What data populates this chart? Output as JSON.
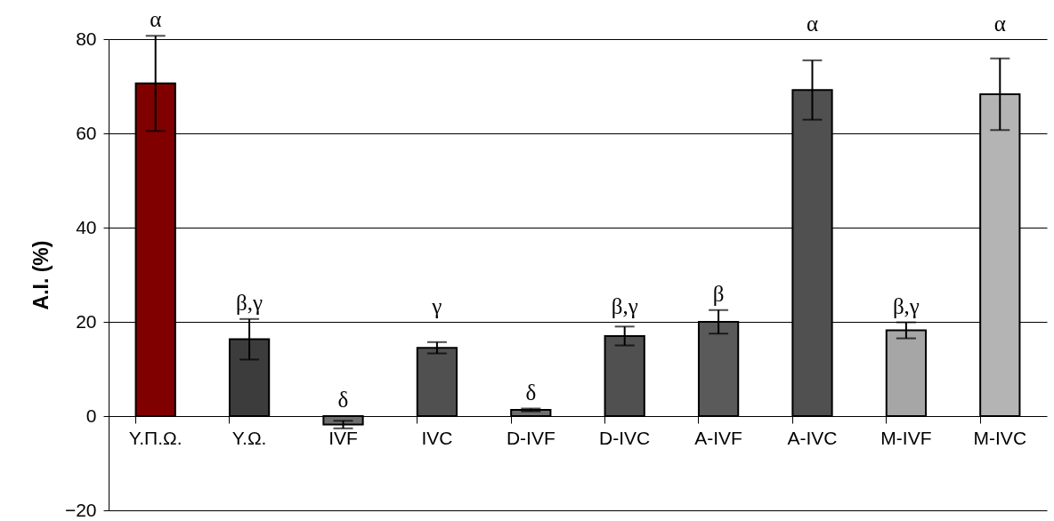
{
  "chart_data": {
    "type": "bar",
    "ylabel": "A.I. (%)",
    "categories": [
      "Υ.Π.Ω.",
      "Υ.Ω.",
      "IVF",
      "IVC",
      "D-IVF",
      "D-IVC",
      "A-IVF",
      "A-IVC",
      "M-IVF",
      "M-IVC"
    ],
    "values": [
      70.6,
      16.3,
      -1.8,
      14.5,
      1.3,
      17.0,
      20.0,
      69.2,
      18.2,
      68.3
    ],
    "errors": [
      10.1,
      4.3,
      0.8,
      1.2,
      0.3,
      2.0,
      2.5,
      6.3,
      1.7,
      7.6
    ],
    "colors": [
      "#800000",
      "#3c3c3c",
      "#6e6e6e",
      "#505050",
      "#6e6e6e",
      "#505050",
      "#5a5a5a",
      "#505050",
      "#a6a6a6",
      "#b4b4b4"
    ],
    "ylim": [
      -20,
      80
    ],
    "yticks": [
      -20,
      0,
      20,
      40,
      60,
      80
    ],
    "grid": "y",
    "annotations": [
      "α",
      "β,γ",
      "δ",
      "γ",
      "δ",
      "β,γ",
      "β",
      "α",
      "β,γ",
      "α"
    ]
  }
}
